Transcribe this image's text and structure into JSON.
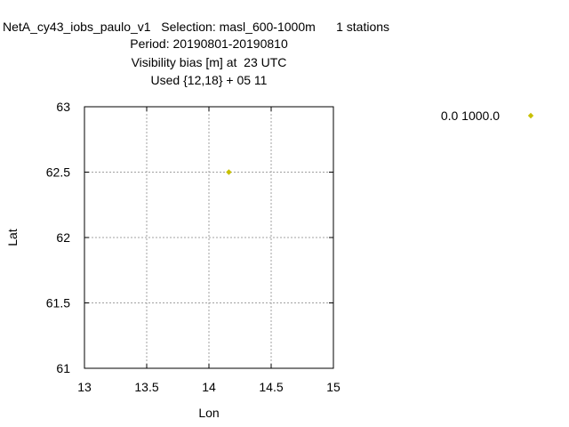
{
  "header": {
    "line1": "NetA_cy43_iobs_paulo_v1   Selection: masl_600-1000m      1 stations",
    "line2": "Period: 20190801-20190810",
    "line3": "Visibility bias [m] at  23 UTC",
    "line4": "Used {12,18} + 05 11"
  },
  "chart_data": {
    "type": "scatter",
    "title": "",
    "xlabel": "Lon",
    "ylabel": "Lat",
    "xlim": [
      13,
      15
    ],
    "ylim": [
      61,
      63
    ],
    "xticks": [
      "13",
      "13.5",
      "14",
      "14.5",
      "15"
    ],
    "yticks": [
      "61",
      "61.5",
      "62",
      "62.5",
      "63"
    ],
    "grid": true,
    "legend_position": "top-right outside",
    "series": [
      {
        "name": "0.0 1000.0",
        "color": "#c8c000",
        "marker": "diamond",
        "points": [
          {
            "x": 14.16,
            "y": 62.5
          }
        ]
      }
    ]
  }
}
